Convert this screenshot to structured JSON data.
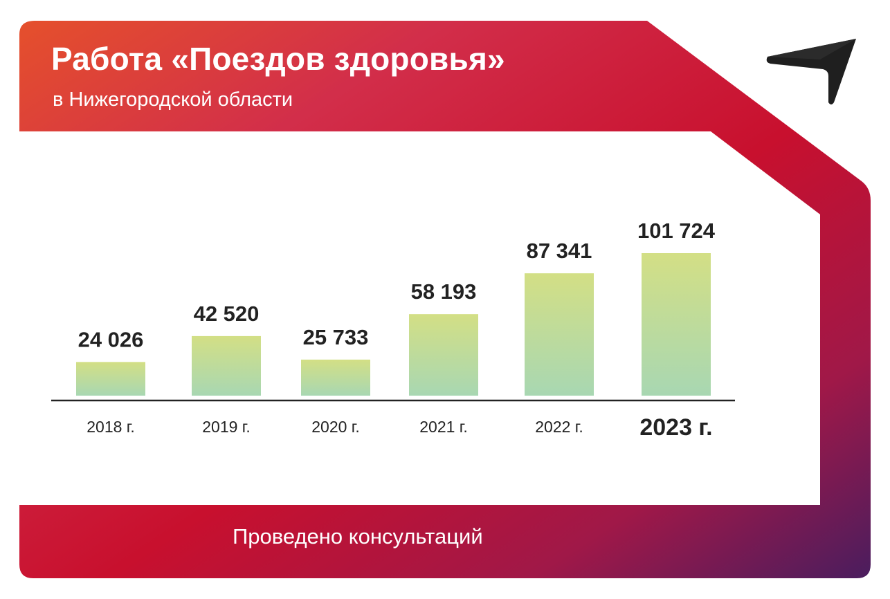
{
  "header": {
    "title": "Работа «Поездов здоровья»",
    "subtitle": "в Нижегородской области"
  },
  "footer": {
    "caption": "Проведено консультаций"
  },
  "logo": {
    "icon": "arrow-logo-icon",
    "color": "#1f1f1f"
  },
  "colors": {
    "frame_left": "#e5402c",
    "frame_mid": "#c8102e",
    "frame_right": "#4a1d5e",
    "bar_top": "#d2df86",
    "bar_bottom": "#a9d8b0",
    "text_dark": "#222222"
  },
  "chart_data": {
    "type": "bar",
    "categories": [
      "2018 г.",
      "2019 г.",
      "2020 г.",
      "2021 г.",
      "2022 г.",
      "2023 г."
    ],
    "values": [
      24026,
      42520,
      25733,
      58193,
      87341,
      101724
    ],
    "value_labels": [
      "24 026",
      "42 520",
      "25 733",
      "58 193",
      "87 341",
      "101 724"
    ],
    "highlighted_category": "2023 г.",
    "title": "Работа «Поездов здоровья»",
    "xlabel": "",
    "ylabel": "",
    "grid": false,
    "legend": "none"
  }
}
